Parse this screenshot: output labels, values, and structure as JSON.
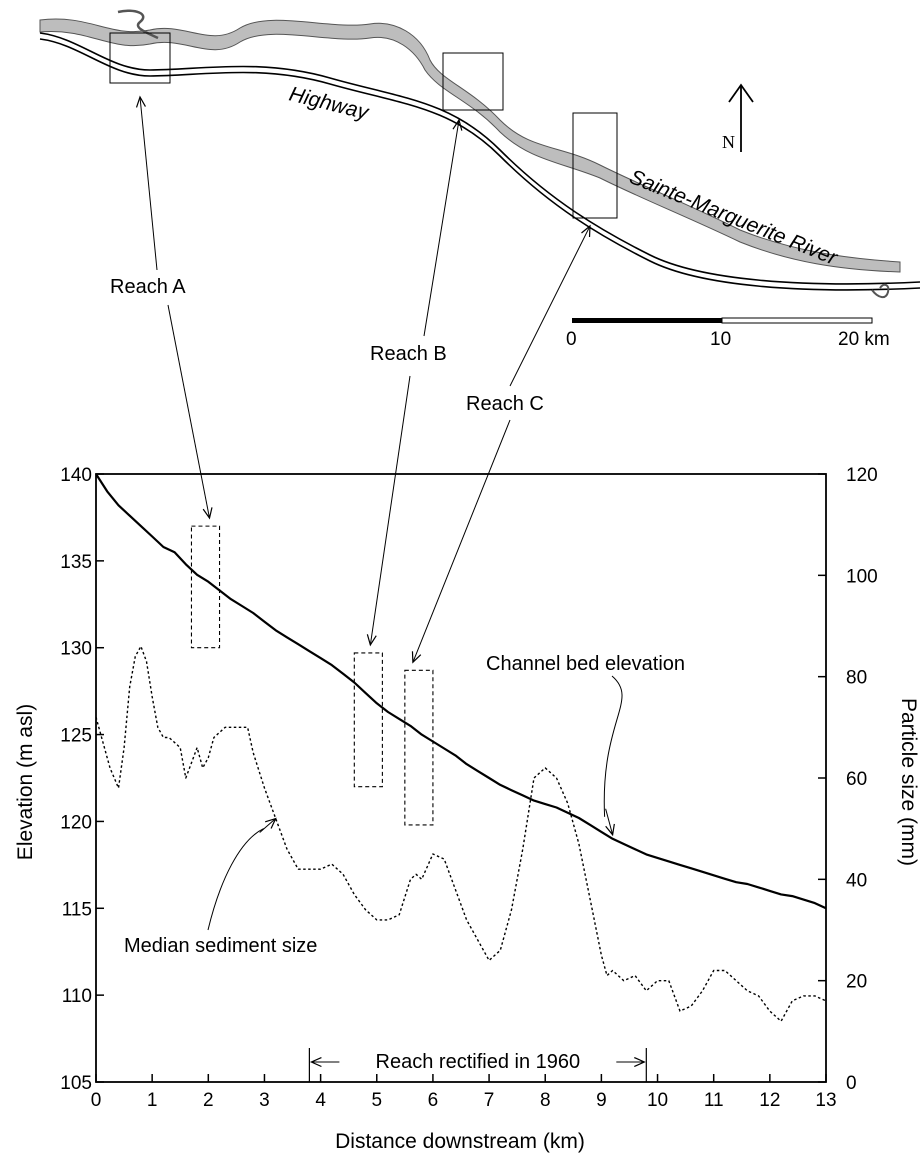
{
  "map": {
    "highway_label": "Highway",
    "river_label": "Sainte-Marguerite River",
    "north_label": "N",
    "scale_bar": {
      "ticks": [
        "0",
        "10",
        "20 km"
      ]
    },
    "colors": {
      "river": "#bdbdbd",
      "highway": "#000000"
    }
  },
  "reach_labels": {
    "a": "Reach A",
    "b": "Reach B",
    "c": "Reach C"
  },
  "chart_data": {
    "type": "line",
    "xlabel": "Distance downstream (km)",
    "ylabel": "Elevation (m asl)",
    "y2label": "Particle size (mm)",
    "xlim": [
      0,
      13
    ],
    "ylim": [
      105,
      140
    ],
    "y2lim": [
      0,
      120
    ],
    "x_ticks": [
      "0",
      "1",
      "2",
      "3",
      "4",
      "5",
      "6",
      "7",
      "8",
      "9",
      "10",
      "11",
      "12",
      "13"
    ],
    "y_ticks": [
      "105",
      "110",
      "115",
      "120",
      "125",
      "130",
      "135",
      "140"
    ],
    "y2_ticks": [
      "0",
      "20",
      "40",
      "60",
      "80",
      "100",
      "120"
    ],
    "series": [
      {
        "name": "Channel bed elevation",
        "axis": "left",
        "style": "solid",
        "x": [
          0,
          0.2,
          0.4,
          0.6,
          0.8,
          1.0,
          1.2,
          1.4,
          1.6,
          1.8,
          2.0,
          2.2,
          2.4,
          2.6,
          2.8,
          3.0,
          3.2,
          3.4,
          3.6,
          3.8,
          4.0,
          4.2,
          4.4,
          4.6,
          4.8,
          5.0,
          5.2,
          5.4,
          5.6,
          5.8,
          6.0,
          6.2,
          6.4,
          6.6,
          6.8,
          7.0,
          7.2,
          7.4,
          7.6,
          7.8,
          8.0,
          8.2,
          8.4,
          8.6,
          8.8,
          9.0,
          9.2,
          9.4,
          9.6,
          9.8,
          10.0,
          10.2,
          10.4,
          10.6,
          10.8,
          11.0,
          11.2,
          11.4,
          11.6,
          11.8,
          12.0,
          12.2,
          12.4,
          12.6,
          12.8,
          13.0
        ],
        "y": [
          140.0,
          139.0,
          138.2,
          137.6,
          137.0,
          136.4,
          135.8,
          135.5,
          134.8,
          134.2,
          133.8,
          133.3,
          132.8,
          132.4,
          132.0,
          131.5,
          131.0,
          130.6,
          130.2,
          129.8,
          129.4,
          129.0,
          128.5,
          128.0,
          127.4,
          126.8,
          126.3,
          125.9,
          125.5,
          125.0,
          124.6,
          124.2,
          123.8,
          123.3,
          122.9,
          122.5,
          122.1,
          121.8,
          121.5,
          121.2,
          121.0,
          120.8,
          120.5,
          120.2,
          119.8,
          119.4,
          119.0,
          118.7,
          118.4,
          118.1,
          117.9,
          117.7,
          117.5,
          117.3,
          117.1,
          116.9,
          116.7,
          116.5,
          116.4,
          116.2,
          116.0,
          115.8,
          115.7,
          115.5,
          115.3,
          115.0
        ]
      },
      {
        "name": "Median sediment size",
        "axis": "right",
        "style": "dotted",
        "x": [
          0,
          0.1,
          0.25,
          0.4,
          0.5,
          0.6,
          0.7,
          0.8,
          0.9,
          1.0,
          1.1,
          1.2,
          1.3,
          1.4,
          1.5,
          1.6,
          1.7,
          1.8,
          1.9,
          2.0,
          2.1,
          2.3,
          2.5,
          2.7,
          2.8,
          3.0,
          3.2,
          3.4,
          3.6,
          3.8,
          4.0,
          4.2,
          4.4,
          4.6,
          4.8,
          5.0,
          5.2,
          5.4,
          5.6,
          5.7,
          5.8,
          6.0,
          6.2,
          6.4,
          6.6,
          6.8,
          7.0,
          7.2,
          7.4,
          7.6,
          7.8,
          8.0,
          8.2,
          8.4,
          8.6,
          8.8,
          9.0,
          9.1,
          9.2,
          9.4,
          9.6,
          9.8,
          10.0,
          10.2,
          10.4,
          10.6,
          10.8,
          11.0,
          11.2,
          11.4,
          11.6,
          11.8,
          12.0,
          12.2,
          12.4,
          12.6,
          12.8,
          13.0
        ],
        "y": [
          72,
          68,
          62,
          58,
          66,
          78,
          84,
          86,
          83,
          76,
          70,
          68,
          68,
          67,
          66,
          60,
          63,
          66,
          62,
          64,
          68,
          70,
          70,
          70,
          65,
          58,
          52,
          46,
          42,
          42,
          42,
          43,
          41,
          37,
          34,
          32,
          32,
          33,
          40,
          41,
          40,
          45,
          44,
          38,
          32,
          28,
          24,
          26,
          34,
          46,
          60,
          62,
          60,
          55,
          47,
          36,
          25,
          21,
          22,
          20,
          21,
          18,
          20,
          20,
          14,
          15,
          18,
          22,
          22,
          20,
          18,
          17,
          14,
          12,
          16,
          17,
          17,
          16
        ]
      }
    ],
    "reach_boxes": [
      {
        "x": [
          1.7,
          2.2
        ],
        "y": [
          130.0,
          137.0
        ]
      },
      {
        "x": [
          4.6,
          5.1
        ],
        "y": [
          122.0,
          129.7
        ]
      },
      {
        "x": [
          5.5,
          6.0
        ],
        "y": [
          119.8,
          128.7
        ]
      }
    ],
    "annotations": {
      "bed_label": "Channel bed elevation",
      "sediment_label": "Median sediment size",
      "rectified": {
        "text": "Reach rectified in 1960",
        "x_range": [
          3.8,
          9.8
        ]
      }
    }
  }
}
